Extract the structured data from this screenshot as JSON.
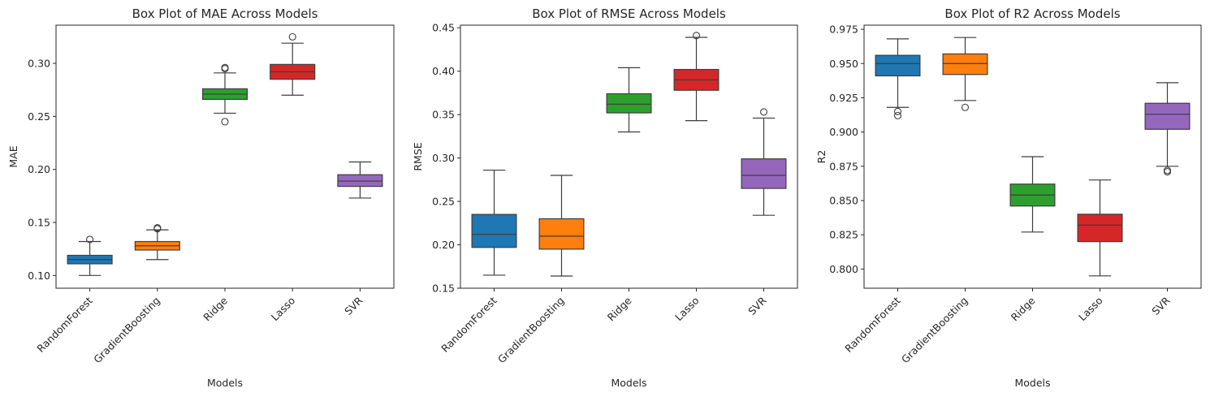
{
  "chart_data": [
    {
      "type": "box",
      "title": "Box Plot of MAE Across Models",
      "xlabel": "Models",
      "ylabel": "MAE",
      "categories": [
        "RandomForest",
        "GradientBoosting",
        "Ridge",
        "Lasso",
        "SVR"
      ],
      "ylim": [
        0.088,
        0.336
      ],
      "yticks": [
        0.1,
        0.15,
        0.2,
        0.25,
        0.3
      ],
      "ytick_labels": [
        "0.10",
        "0.15",
        "0.20",
        "0.25",
        "0.30"
      ],
      "grid": false,
      "boxes": [
        {
          "name": "RandomForest",
          "color": "#1f77b4",
          "whislo": 0.1,
          "q1": 0.111,
          "med": 0.115,
          "q3": 0.119,
          "whishi": 0.132,
          "fliers": [
            0.134
          ]
        },
        {
          "name": "GradientBoosting",
          "color": "#ff7f0e",
          "whislo": 0.115,
          "q1": 0.124,
          "med": 0.128,
          "q3": 0.132,
          "whishi": 0.143,
          "fliers": [
            0.145,
            0.144
          ]
        },
        {
          "name": "Ridge",
          "color": "#2ca02c",
          "whislo": 0.253,
          "q1": 0.266,
          "med": 0.271,
          "q3": 0.276,
          "whishi": 0.291,
          "fliers": [
            0.245,
            0.295,
            0.296
          ]
        },
        {
          "name": "Lasso",
          "color": "#d62728",
          "whislo": 0.27,
          "q1": 0.285,
          "med": 0.292,
          "q3": 0.299,
          "whishi": 0.319,
          "fliers": [
            0.325
          ]
        },
        {
          "name": "SVR",
          "color": "#9467bd",
          "whislo": 0.173,
          "q1": 0.184,
          "med": 0.189,
          "q3": 0.195,
          "whishi": 0.207,
          "fliers": []
        }
      ]
    },
    {
      "type": "box",
      "title": "Box Plot of RMSE Across Models",
      "xlabel": "Models",
      "ylabel": "RMSE",
      "categories": [
        "RandomForest",
        "GradientBoosting",
        "Ridge",
        "Lasso",
        "SVR"
      ],
      "ylim": [
        0.15,
        0.453
      ],
      "yticks": [
        0.15,
        0.2,
        0.25,
        0.3,
        0.35,
        0.4,
        0.45
      ],
      "ytick_labels": [
        "0.15",
        "0.20",
        "0.25",
        "0.30",
        "0.35",
        "0.40",
        "0.45"
      ],
      "grid": false,
      "boxes": [
        {
          "name": "RandomForest",
          "color": "#1f77b4",
          "whislo": 0.165,
          "q1": 0.197,
          "med": 0.212,
          "q3": 0.235,
          "whishi": 0.286,
          "fliers": []
        },
        {
          "name": "GradientBoosting",
          "color": "#ff7f0e",
          "whislo": 0.164,
          "q1": 0.195,
          "med": 0.21,
          "q3": 0.23,
          "whishi": 0.28,
          "fliers": []
        },
        {
          "name": "Ridge",
          "color": "#2ca02c",
          "whislo": 0.33,
          "q1": 0.352,
          "med": 0.362,
          "q3": 0.374,
          "whishi": 0.404,
          "fliers": []
        },
        {
          "name": "Lasso",
          "color": "#d62728",
          "whislo": 0.343,
          "q1": 0.378,
          "med": 0.39,
          "q3": 0.402,
          "whishi": 0.439,
          "fliers": [
            0.441
          ]
        },
        {
          "name": "SVR",
          "color": "#9467bd",
          "whislo": 0.234,
          "q1": 0.265,
          "med": 0.28,
          "q3": 0.299,
          "whishi": 0.346,
          "fliers": [
            0.353
          ]
        }
      ]
    },
    {
      "type": "box",
      "title": "Box Plot of R2 Across Models",
      "xlabel": "Models",
      "ylabel": "R2",
      "categories": [
        "RandomForest",
        "GradientBoosting",
        "Ridge",
        "Lasso",
        "SVR"
      ],
      "ylim": [
        0.786,
        0.978
      ],
      "yticks": [
        0.8,
        0.825,
        0.85,
        0.875,
        0.9,
        0.925,
        0.95,
        0.975
      ],
      "ytick_labels": [
        "0.800",
        "0.825",
        "0.850",
        "0.875",
        "0.900",
        "0.925",
        "0.950",
        "0.975"
      ],
      "grid": false,
      "boxes": [
        {
          "name": "RandomForest",
          "color": "#1f77b4",
          "whislo": 0.918,
          "q1": 0.941,
          "med": 0.95,
          "q3": 0.956,
          "whishi": 0.968,
          "fliers": [
            0.912,
            0.915
          ]
        },
        {
          "name": "GradientBoosting",
          "color": "#ff7f0e",
          "whislo": 0.923,
          "q1": 0.942,
          "med": 0.95,
          "q3": 0.957,
          "whishi": 0.969,
          "fliers": [
            0.918
          ]
        },
        {
          "name": "Ridge",
          "color": "#2ca02c",
          "whislo": 0.827,
          "q1": 0.846,
          "med": 0.854,
          "q3": 0.862,
          "whishi": 0.882,
          "fliers": []
        },
        {
          "name": "Lasso",
          "color": "#d62728",
          "whislo": 0.795,
          "q1": 0.82,
          "med": 0.832,
          "q3": 0.84,
          "whishi": 0.865,
          "fliers": []
        },
        {
          "name": "SVR",
          "color": "#9467bd",
          "whislo": 0.875,
          "q1": 0.902,
          "med": 0.913,
          "q3": 0.921,
          "whishi": 0.936,
          "fliers": [
            0.871,
            0.872
          ]
        }
      ]
    }
  ]
}
